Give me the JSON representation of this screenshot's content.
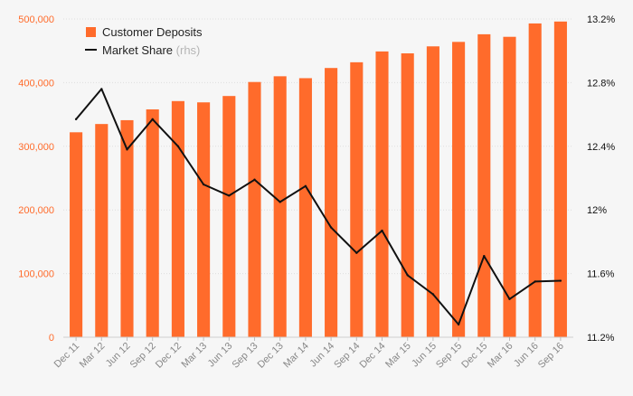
{
  "chart_data": {
    "type": "bar",
    "categories": [
      "Dec 11",
      "Mar 12",
      "Jun 12",
      "Sep 12",
      "Dec 12",
      "Mar 13",
      "Jun 13",
      "Sep 13",
      "Dec 13",
      "Mar 14",
      "Jun 14",
      "Sep 14",
      "Dec 14",
      "Mar 15",
      "Jun 15",
      "Sep 15",
      "Dec 15",
      "Mar 16",
      "Jun 16",
      "Sep 16"
    ],
    "series": [
      {
        "name": "Customer Deposits",
        "type": "bar",
        "axis": "left",
        "color": "#ff6b2b",
        "values": [
          322000,
          335000,
          341000,
          358000,
          371000,
          369000,
          379000,
          401000,
          410000,
          407000,
          423000,
          432000,
          449000,
          446000,
          457000,
          464000,
          476000,
          472000,
          493000,
          496000
        ]
      },
      {
        "name": "Market Share",
        "name_suffix": "(rhs)",
        "type": "line",
        "axis": "right",
        "color": "#111111",
        "values": [
          12.57,
          12.76,
          12.38,
          12.57,
          12.4,
          12.16,
          12.09,
          12.19,
          12.05,
          12.15,
          11.89,
          11.73,
          11.87,
          11.59,
          11.47,
          11.28,
          11.71,
          11.44,
          11.55,
          11.555
        ]
      }
    ],
    "y_left": {
      "ylim": [
        0,
        500000
      ],
      "ticks": [
        0,
        100000,
        200000,
        300000,
        400000,
        500000
      ],
      "tick_labels": [
        "0",
        "100,000",
        "200,000",
        "300,000",
        "400,000",
        "500,000"
      ],
      "tick_color": "#ff6b2b"
    },
    "y_right": {
      "ylim": [
        11.2,
        13.2
      ],
      "ticks": [
        11.2,
        11.6,
        12.0,
        12.4,
        12.8,
        13.2
      ],
      "tick_labels": [
        "11.2%",
        "11.6%",
        "12%",
        "12.4%",
        "12.8%",
        "13.2%"
      ],
      "tick_color": "#111111"
    },
    "grid": true,
    "legend_position": "top-left",
    "title": "",
    "xlabel": "",
    "ylabel": ""
  }
}
